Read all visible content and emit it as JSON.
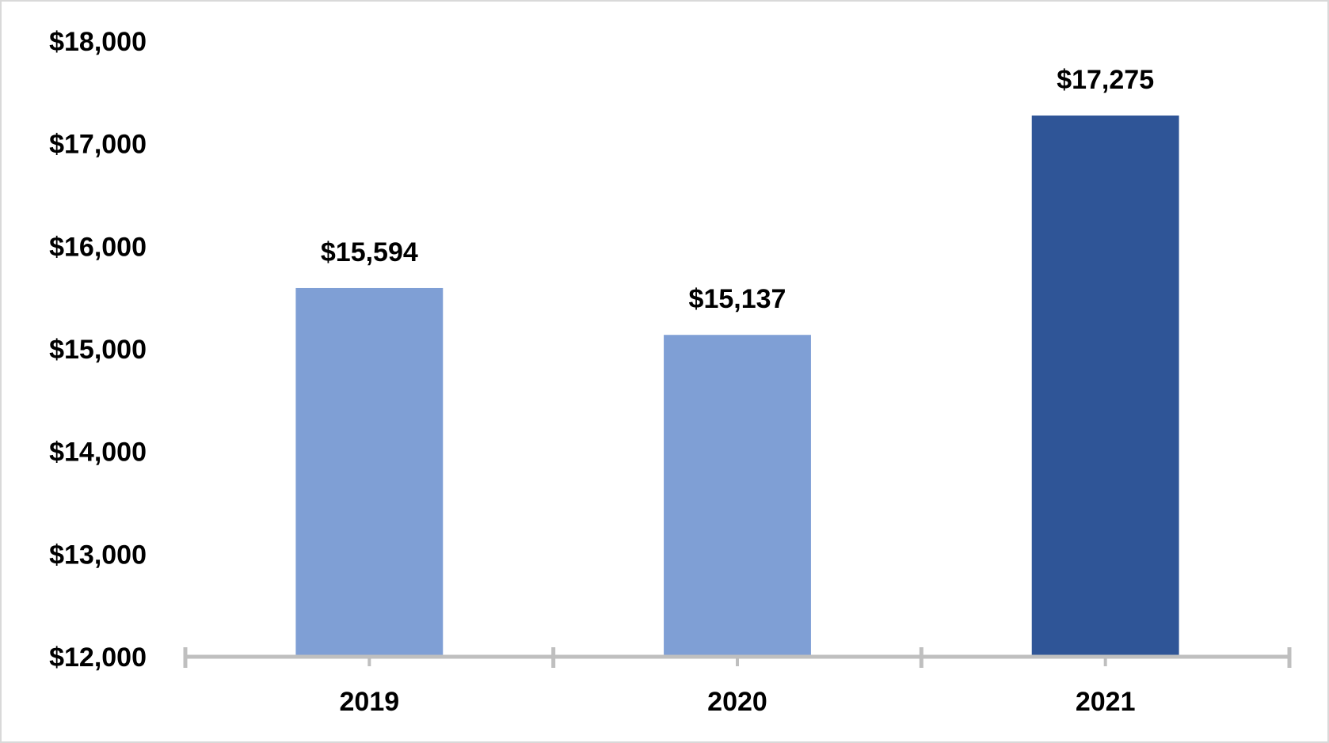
{
  "chart_data": {
    "type": "bar",
    "title": "",
    "xlabel": "",
    "ylabel": "",
    "categories": [
      "2019",
      "2020",
      "2021"
    ],
    "values": [
      15594,
      15137,
      17275
    ],
    "data_labels": [
      "$15,594",
      "$15,137",
      "$17,275"
    ],
    "ylim": [
      12000,
      18000
    ],
    "y_ticks": [
      12000,
      13000,
      14000,
      15000,
      16000,
      17000,
      18000
    ],
    "y_tick_labels": [
      "$12,000",
      "$13,000",
      "$14,000",
      "$15,000",
      "$16,000",
      "$17,000",
      "$18,000"
    ],
    "bar_colors": [
      "#7f9fd5",
      "#7f9fd5",
      "#2f5597"
    ],
    "axis_color": "#bfbfbf",
    "grid": false,
    "legend": "none"
  }
}
